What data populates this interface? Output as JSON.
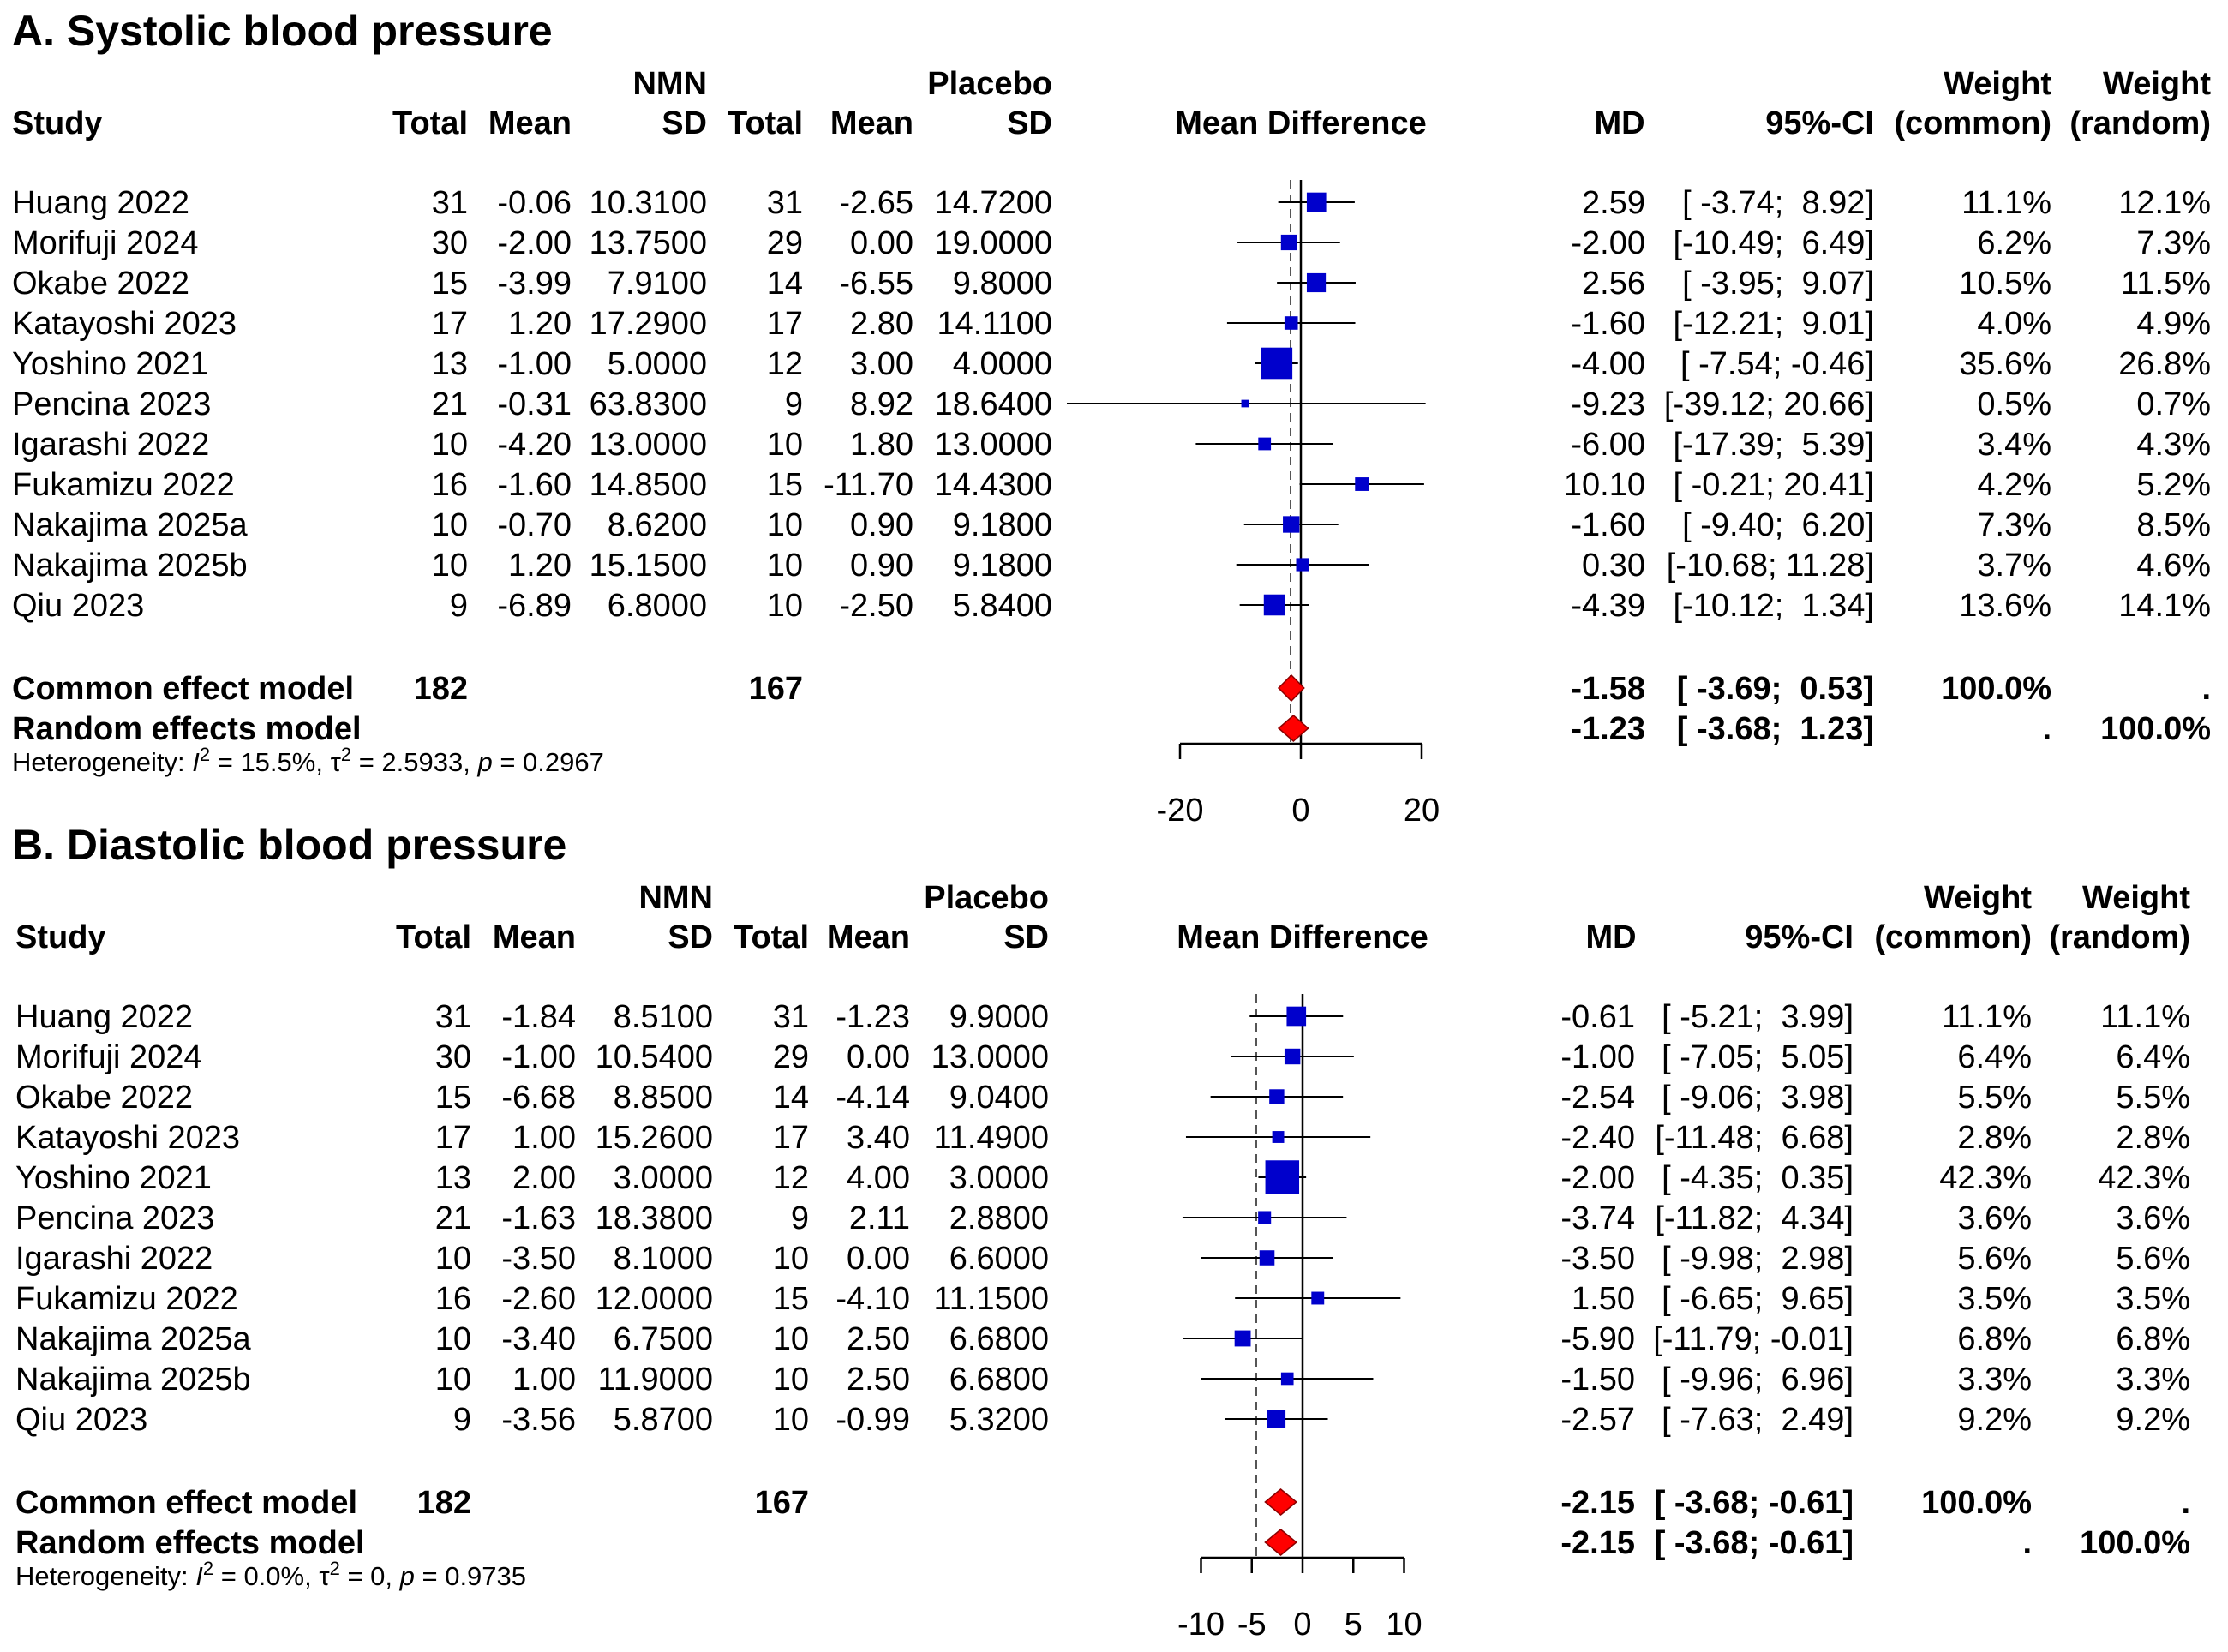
{
  "headers": {
    "study": "Study",
    "nmn": "NMN",
    "placebo": "Placebo",
    "total": "Total",
    "mean": "Mean",
    "sd": "SD",
    "mean_difference": "Mean Difference",
    "md": "MD",
    "ci": "95%-CI",
    "weight": "Weight",
    "common": "(common)",
    "random": "(random)"
  },
  "chart_data": [
    {
      "type": "forest",
      "title": "A. Systolic blood pressure",
      "xlim": [
        -20,
        20
      ],
      "x_ticks": [
        "-20",
        "0",
        "20"
      ],
      "rows": [
        {
          "study": "Huang 2022",
          "nmn_total": "31",
          "nmn_mean": "-0.06",
          "nmn_sd": "10.3100",
          "pl_total": "31",
          "pl_mean": "-2.65",
          "pl_sd": "14.7200",
          "md_text": "2.59",
          "ci_text": "[ -3.74;  8.92]",
          "w_common": "11.1%",
          "w_random": "12.1%",
          "md": 2.59,
          "lo": -3.74,
          "hi": 8.92,
          "w": 11.1
        },
        {
          "study": "Morifuji 2024",
          "nmn_total": "30",
          "nmn_mean": "-2.00",
          "nmn_sd": "13.7500",
          "pl_total": "29",
          "pl_mean": "0.00",
          "pl_sd": "19.0000",
          "md_text": "-2.00",
          "ci_text": "[-10.49;  6.49]",
          "w_common": "6.2%",
          "w_random": "7.3%",
          "md": -2.0,
          "lo": -10.49,
          "hi": 6.49,
          "w": 6.2
        },
        {
          "study": "Okabe 2022",
          "nmn_total": "15",
          "nmn_mean": "-3.99",
          "nmn_sd": "7.9100",
          "pl_total": "14",
          "pl_mean": "-6.55",
          "pl_sd": "9.8000",
          "md_text": "2.56",
          "ci_text": "[ -3.95;  9.07]",
          "w_common": "10.5%",
          "w_random": "11.5%",
          "md": 2.56,
          "lo": -3.95,
          "hi": 9.07,
          "w": 10.5
        },
        {
          "study": "Katayoshi 2023",
          "nmn_total": "17",
          "nmn_mean": "1.20",
          "nmn_sd": "17.2900",
          "pl_total": "17",
          "pl_mean": "2.80",
          "pl_sd": "14.1100",
          "md_text": "-1.60",
          "ci_text": "[-12.21;  9.01]",
          "w_common": "4.0%",
          "w_random": "4.9%",
          "md": -1.6,
          "lo": -12.21,
          "hi": 9.01,
          "w": 4.0
        },
        {
          "study": "Yoshino 2021",
          "nmn_total": "13",
          "nmn_mean": "-1.00",
          "nmn_sd": "5.0000",
          "pl_total": "12",
          "pl_mean": "3.00",
          "pl_sd": "4.0000",
          "md_text": "-4.00",
          "ci_text": "[ -7.54; -0.46]",
          "w_common": "35.6%",
          "w_random": "26.8%",
          "md": -4.0,
          "lo": -7.54,
          "hi": -0.46,
          "w": 35.6
        },
        {
          "study": "Pencina 2023",
          "nmn_total": "21",
          "nmn_mean": "-0.31",
          "nmn_sd": "63.8300",
          "pl_total": "9",
          "pl_mean": "8.92",
          "pl_sd": "18.6400",
          "md_text": "-9.23",
          "ci_text": "[-39.12; 20.66]",
          "w_common": "0.5%",
          "w_random": "0.7%",
          "md": -9.23,
          "lo": -39.12,
          "hi": 20.66,
          "w": 0.5
        },
        {
          "study": "Igarashi 2022",
          "nmn_total": "10",
          "nmn_mean": "-4.20",
          "nmn_sd": "13.0000",
          "pl_total": "10",
          "pl_mean": "1.80",
          "pl_sd": "13.0000",
          "md_text": "-6.00",
          "ci_text": "[-17.39;  5.39]",
          "w_common": "3.4%",
          "w_random": "4.3%",
          "md": -6.0,
          "lo": -17.39,
          "hi": 5.39,
          "w": 3.4
        },
        {
          "study": "Fukamizu 2022",
          "nmn_total": "16",
          "nmn_mean": "-1.60",
          "nmn_sd": "14.8500",
          "pl_total": "15",
          "pl_mean": "-11.70",
          "pl_sd": "14.4300",
          "md_text": "10.10",
          "ci_text": "[ -0.21; 20.41]",
          "w_common": "4.2%",
          "w_random": "5.2%",
          "md": 10.1,
          "lo": -0.21,
          "hi": 20.41,
          "w": 4.2
        },
        {
          "study": "Nakajima 2025a",
          "nmn_total": "10",
          "nmn_mean": "-0.70",
          "nmn_sd": "8.6200",
          "pl_total": "10",
          "pl_mean": "0.90",
          "pl_sd": "9.1800",
          "md_text": "-1.60",
          "ci_text": "[ -9.40;  6.20]",
          "w_common": "7.3%",
          "w_random": "8.5%",
          "md": -1.6,
          "lo": -9.4,
          "hi": 6.2,
          "w": 7.3
        },
        {
          "study": "Nakajima 2025b",
          "nmn_total": "10",
          "nmn_mean": "1.20",
          "nmn_sd": "15.1500",
          "pl_total": "10",
          "pl_mean": "0.90",
          "pl_sd": "9.1800",
          "md_text": "0.30",
          "ci_text": "[-10.68; 11.28]",
          "w_common": "3.7%",
          "w_random": "4.6%",
          "md": 0.3,
          "lo": -10.68,
          "hi": 11.28,
          "w": 3.7
        },
        {
          "study": "Qiu 2023",
          "nmn_total": "9",
          "nmn_mean": "-6.89",
          "nmn_sd": "6.8000",
          "pl_total": "10",
          "pl_mean": "-2.50",
          "pl_sd": "5.8400",
          "md_text": "-4.39",
          "ci_text": "[-10.12;  1.34]",
          "w_common": "13.6%",
          "w_random": "14.1%",
          "md": -4.39,
          "lo": -10.12,
          "hi": 1.34,
          "w": 13.6
        }
      ],
      "common": {
        "label": "Common effect model",
        "nmn_total": "182",
        "pl_total": "167",
        "md_text": "-1.58",
        "ci_text": "[ -3.69;  0.53]",
        "w_common": "100.0%",
        "w_random": ".",
        "md": -1.58,
        "lo": -3.69,
        "hi": 0.53
      },
      "random": {
        "label": "Random effects model",
        "md_text": "-1.23",
        "ci_text": "[ -3.68;  1.23]",
        "w_common": ".",
        "w_random": "100.0%",
        "md": -1.23,
        "lo": -3.68,
        "hi": 1.23
      },
      "heterogeneity": {
        "prefix": "Heterogeneity: ",
        "i2_sym": "I",
        "i2_sup": "2",
        "i2_val": " = 15.5%, ",
        "tau_sym": "τ",
        "tau_sup": "2",
        "tau_val": " = 2.5933, ",
        "p_sym": "p",
        "p_val": " = 0.2967"
      }
    },
    {
      "type": "forest",
      "title": "B. Diastolic blood pressure",
      "xlim": [
        -10,
        10
      ],
      "x_ticks": [
        "-10",
        "-5",
        "0",
        "5",
        "10"
      ],
      "rows": [
        {
          "study": "Huang 2022",
          "nmn_total": "31",
          "nmn_mean": "-1.84",
          "nmn_sd": "8.5100",
          "pl_total": "31",
          "pl_mean": "-1.23",
          "pl_sd": "9.9000",
          "md_text": "-0.61",
          "ci_text": "[ -5.21;  3.99]",
          "w_common": "11.1%",
          "w_random": "11.1%",
          "md": -0.61,
          "lo": -5.21,
          "hi": 3.99,
          "w": 11.1
        },
        {
          "study": "Morifuji 2024",
          "nmn_total": "30",
          "nmn_mean": "-1.00",
          "nmn_sd": "10.5400",
          "pl_total": "29",
          "pl_mean": "0.00",
          "pl_sd": "13.0000",
          "md_text": "-1.00",
          "ci_text": "[ -7.05;  5.05]",
          "w_common": "6.4%",
          "w_random": "6.4%",
          "md": -1.0,
          "lo": -7.05,
          "hi": 5.05,
          "w": 6.4
        },
        {
          "study": "Okabe 2022",
          "nmn_total": "15",
          "nmn_mean": "-6.68",
          "nmn_sd": "8.8500",
          "pl_total": "14",
          "pl_mean": "-4.14",
          "pl_sd": "9.0400",
          "md_text": "-2.54",
          "ci_text": "[ -9.06;  3.98]",
          "w_common": "5.5%",
          "w_random": "5.5%",
          "md": -2.54,
          "lo": -9.06,
          "hi": 3.98,
          "w": 5.5
        },
        {
          "study": "Katayoshi 2023",
          "nmn_total": "17",
          "nmn_mean": "1.00",
          "nmn_sd": "15.2600",
          "pl_total": "17",
          "pl_mean": "3.40",
          "pl_sd": "11.4900",
          "md_text": "-2.40",
          "ci_text": "[-11.48;  6.68]",
          "w_common": "2.8%",
          "w_random": "2.8%",
          "md": -2.4,
          "lo": -11.48,
          "hi": 6.68,
          "w": 2.8
        },
        {
          "study": "Yoshino 2021",
          "nmn_total": "13",
          "nmn_mean": "2.00",
          "nmn_sd": "3.0000",
          "pl_total": "12",
          "pl_mean": "4.00",
          "pl_sd": "3.0000",
          "md_text": "-2.00",
          "ci_text": "[ -4.35;  0.35]",
          "w_common": "42.3%",
          "w_random": "42.3%",
          "md": -2.0,
          "lo": -4.35,
          "hi": 0.35,
          "w": 42.3
        },
        {
          "study": "Pencina 2023",
          "nmn_total": "21",
          "nmn_mean": "-1.63",
          "nmn_sd": "18.3800",
          "pl_total": "9",
          "pl_mean": "2.11",
          "pl_sd": "2.8800",
          "md_text": "-3.74",
          "ci_text": "[-11.82;  4.34]",
          "w_common": "3.6%",
          "w_random": "3.6%",
          "md": -3.74,
          "lo": -11.82,
          "hi": 4.34,
          "w": 3.6
        },
        {
          "study": "Igarashi 2022",
          "nmn_total": "10",
          "nmn_mean": "-3.50",
          "nmn_sd": "8.1000",
          "pl_total": "10",
          "pl_mean": "0.00",
          "pl_sd": "6.6000",
          "md_text": "-3.50",
          "ci_text": "[ -9.98;  2.98]",
          "w_common": "5.6%",
          "w_random": "5.6%",
          "md": -3.5,
          "lo": -9.98,
          "hi": 2.98,
          "w": 5.6
        },
        {
          "study": "Fukamizu 2022",
          "nmn_total": "16",
          "nmn_mean": "-2.60",
          "nmn_sd": "12.0000",
          "pl_total": "15",
          "pl_mean": "-4.10",
          "pl_sd": "11.1500",
          "md_text": "1.50",
          "ci_text": "[ -6.65;  9.65]",
          "w_common": "3.5%",
          "w_random": "3.5%",
          "md": 1.5,
          "lo": -6.65,
          "hi": 9.65,
          "w": 3.5
        },
        {
          "study": "Nakajima 2025a",
          "nmn_total": "10",
          "nmn_mean": "-3.40",
          "nmn_sd": "6.7500",
          "pl_total": "10",
          "pl_mean": "2.50",
          "pl_sd": "6.6800",
          "md_text": "-5.90",
          "ci_text": "[-11.79; -0.01]",
          "w_common": "6.8%",
          "w_random": "6.8%",
          "md": -5.9,
          "lo": -11.79,
          "hi": -0.01,
          "w": 6.8
        },
        {
          "study": "Nakajima 2025b",
          "nmn_total": "10",
          "nmn_mean": "1.00",
          "nmn_sd": "11.9000",
          "pl_total": "10",
          "pl_mean": "2.50",
          "pl_sd": "6.6800",
          "md_text": "-1.50",
          "ci_text": "[ -9.96;  6.96]",
          "w_common": "3.3%",
          "w_random": "3.3%",
          "md": -1.5,
          "lo": -9.96,
          "hi": 6.96,
          "w": 3.3
        },
        {
          "study": "Qiu 2023",
          "nmn_total": "9",
          "nmn_mean": "-3.56",
          "nmn_sd": "5.8700",
          "pl_total": "10",
          "pl_mean": "-0.99",
          "pl_sd": "5.3200",
          "md_text": "-2.57",
          "ci_text": "[ -7.63;  2.49]",
          "w_common": "9.2%",
          "w_random": "9.2%",
          "md": -2.57,
          "lo": -7.63,
          "hi": 2.49,
          "w": 9.2
        }
      ],
      "common": {
        "label": "Common effect model",
        "nmn_total": "182",
        "pl_total": "167",
        "md_text": "-2.15",
        "ci_text": "[ -3.68; -0.61]",
        "w_common": "100.0%",
        "w_random": ".",
        "md": -2.15,
        "lo": -3.68,
        "hi": -0.61
      },
      "random": {
        "label": "Random effects model",
        "md_text": "-2.15",
        "ci_text": "[ -3.68; -0.61]",
        "w_common": ".",
        "w_random": "100.0%",
        "md": -2.15,
        "lo": -3.68,
        "hi": -0.61
      },
      "heterogeneity": {
        "prefix": "Heterogeneity: ",
        "i2_sym": "I",
        "i2_sup": "2",
        "i2_val": " = 0.0%, ",
        "tau_sym": "τ",
        "tau_sup": "2",
        "tau_val": " = 0, ",
        "p_sym": "p",
        "p_val": " = 0.9735"
      }
    }
  ],
  "colors": {
    "square": "#0000cc",
    "diamond": "#ff0000",
    "line": "#000000",
    "dashed": "#555555"
  }
}
